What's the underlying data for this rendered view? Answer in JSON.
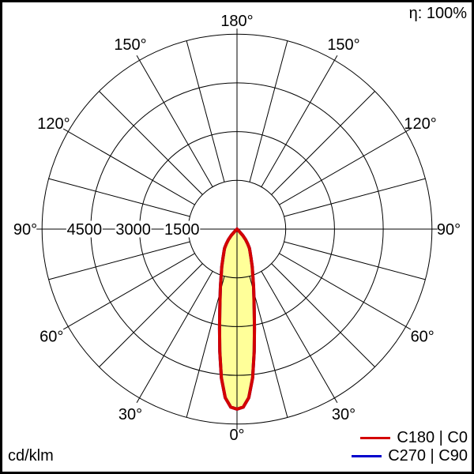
{
  "header": {
    "efficiency_label": "η: 100%"
  },
  "footer": {
    "unit_label": "cd/klm"
  },
  "legend": {
    "items": [
      {
        "label": "C180 | C0",
        "color": "#d40000"
      },
      {
        "label": "C270 | C90",
        "color": "#0000cc"
      }
    ]
  },
  "chart_data": {
    "type": "polar",
    "units": "cd/klm",
    "efficiency": "η: 100%",
    "radial_axis": {
      "max": 6000,
      "ticks": [
        {
          "value": 1500,
          "label": "1500"
        },
        {
          "value": 3000,
          "label": "3000"
        },
        {
          "value": 4500,
          "label": "4500"
        }
      ]
    },
    "angle_axis": {
      "grid_step_deg": 15,
      "zero_direction": "down",
      "labels": [
        {
          "deg": 0,
          "label": "0°",
          "sides": [
            "center-bottom"
          ]
        },
        {
          "deg": 30,
          "label": "30°",
          "sides": [
            "left",
            "right"
          ]
        },
        {
          "deg": 60,
          "label": "60°",
          "sides": [
            "left",
            "right"
          ]
        },
        {
          "deg": 90,
          "label": "90°",
          "sides": [
            "left",
            "right"
          ]
        },
        {
          "deg": 120,
          "label": "120°",
          "sides": [
            "left",
            "right"
          ]
        },
        {
          "deg": 150,
          "label": "150°",
          "sides": [
            "left",
            "right"
          ]
        },
        {
          "deg": 180,
          "label": "180°",
          "sides": [
            "center-top"
          ]
        }
      ]
    },
    "series": [
      {
        "name": "C180 | C0",
        "color": "#d40000",
        "fill": "#ffff99",
        "symmetric": true,
        "coincident_with": null,
        "gamma_deg": [
          0,
          2,
          4,
          6,
          8,
          10,
          12,
          14,
          16,
          18,
          20,
          22,
          24,
          26,
          28,
          30,
          33,
          36,
          39,
          42,
          45,
          47
        ],
        "intensity_cd_klm": [
          5540,
          5480,
          5200,
          4600,
          3800,
          3100,
          2550,
          2150,
          1850,
          1600,
          1400,
          1250,
          1100,
          980,
          880,
          800,
          700,
          560,
          420,
          260,
          80,
          0
        ]
      },
      {
        "name": "C270 | C90",
        "color": "#0000cc",
        "fill": "none",
        "symmetric": true,
        "coincident_with": "C180 | C0",
        "gamma_deg": [
          0,
          2,
          4,
          6,
          8,
          10,
          12,
          14,
          16,
          18,
          20,
          22,
          24,
          26,
          28,
          30,
          33,
          36,
          39,
          42,
          45,
          47
        ],
        "intensity_cd_klm": [
          5540,
          5480,
          5200,
          4600,
          3800,
          3100,
          2550,
          2150,
          1850,
          1600,
          1400,
          1250,
          1100,
          980,
          880,
          800,
          700,
          560,
          420,
          260,
          80,
          0
        ]
      }
    ]
  }
}
